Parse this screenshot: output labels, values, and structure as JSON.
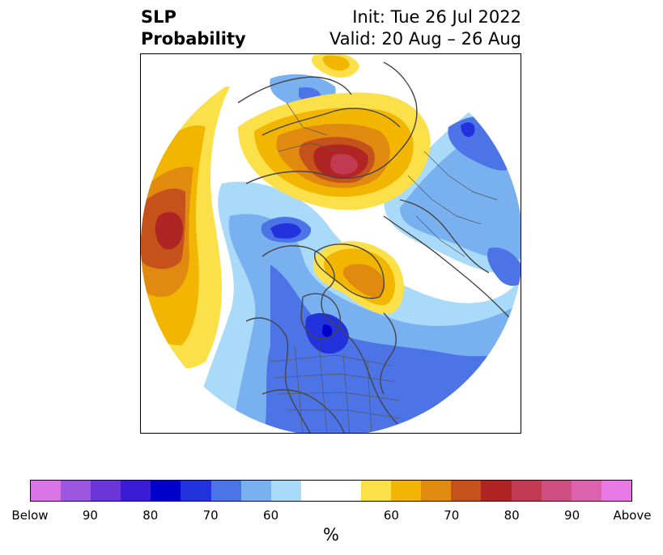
{
  "title": {
    "left_line1": "SLP",
    "left_line2": "Probability",
    "right_line1": "Init: Tue 26 Jul 2022",
    "right_line2": "Valid: 20 Aug – 26 Aug"
  },
  "map": {
    "projection": "north-polar-stereographic",
    "palette": {
      "below": [
        "#d874e6",
        "#9b57e0",
        "#6a36d8",
        "#3a1cd6",
        "#0000cc",
        "#2233dd",
        "#4d74e6",
        "#78b0f0",
        "#a9dafa"
      ],
      "neutral": "#ffffff",
      "above": [
        "#fbe04a",
        "#f2b600",
        "#e08a10",
        "#c4521a",
        "#b02424",
        "#c23a52",
        "#cc4f80",
        "#dd62ae",
        "#e878e4"
      ],
      "coastline": "#444444"
    }
  },
  "colorbar": {
    "segments": [
      {
        "color": "#d874e6"
      },
      {
        "color": "#9b57e0"
      },
      {
        "color": "#6a36d8"
      },
      {
        "color": "#3a1cd6"
      },
      {
        "color": "#0000cc"
      },
      {
        "color": "#2233dd"
      },
      {
        "color": "#4d74e6"
      },
      {
        "color": "#78b0f0"
      },
      {
        "color": "#a9dafa"
      },
      {
        "color": "#ffffff"
      },
      {
        "color": "#ffffff"
      },
      {
        "color": "#fbe04a"
      },
      {
        "color": "#f2b600"
      },
      {
        "color": "#e08a10"
      },
      {
        "color": "#c4521a"
      },
      {
        "color": "#b02424"
      },
      {
        "color": "#c23a52"
      },
      {
        "color": "#cc4f80"
      },
      {
        "color": "#dd62ae"
      },
      {
        "color": "#e878e4"
      }
    ],
    "labels": [
      "Below",
      "90",
      "80",
      "70",
      "60",
      "60",
      "70",
      "80",
      "90",
      "Above"
    ],
    "unit": "%"
  }
}
